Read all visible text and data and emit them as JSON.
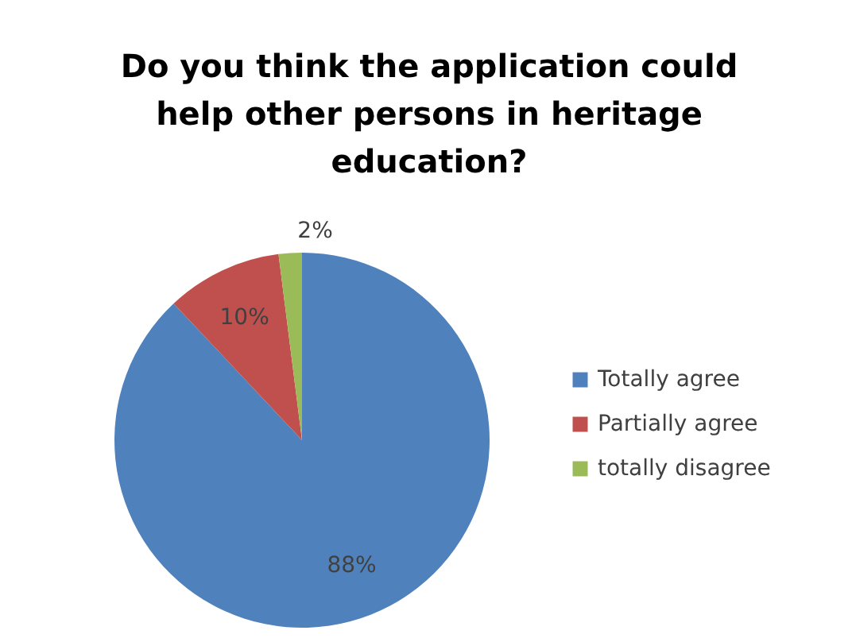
{
  "chart_data": {
    "type": "pie",
    "title": "Do you think the application could help other persons in heritage education?",
    "categories": [
      "Totally agree",
      "Partially agree",
      "totally disagree"
    ],
    "values": [
      88,
      10,
      2
    ],
    "colors": [
      "#4f81bd",
      "#c0504d",
      "#9bbb59"
    ],
    "value_labels": [
      "88%",
      "10%",
      "2%"
    ],
    "legend": "right"
  }
}
